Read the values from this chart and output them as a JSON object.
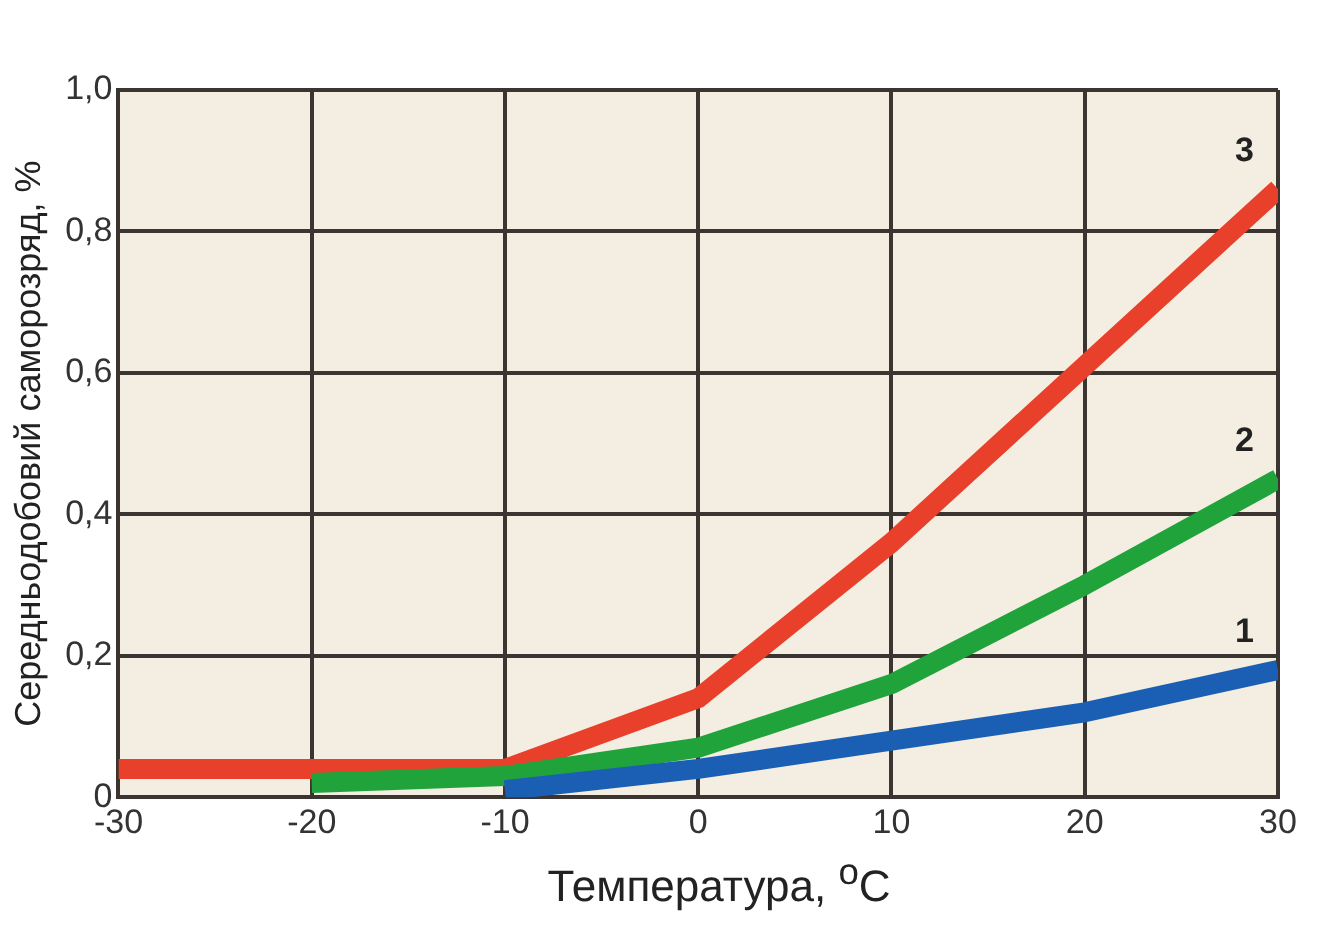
{
  "chart_data": {
    "type": "line",
    "xlabel": "Температура, $^{o}$C",
    "ylabel": "Середньодобовий саморозряд, %",
    "xlim": [
      -30,
      30
    ],
    "xticks": [
      -30,
      -20,
      -10,
      0,
      10,
      20,
      30
    ],
    "ylim": [
      0,
      1
    ],
    "yticks": [
      {
        "value": 0,
        "label": "0"
      },
      {
        "value": 0.2,
        "label": "0,2"
      },
      {
        "value": 0.4,
        "label": "0,4"
      },
      {
        "value": 0.6,
        "label": "0,6"
      },
      {
        "value": 0.8,
        "label": "0,8"
      },
      {
        "value": 1,
        "label": "1,0"
      }
    ],
    "grid": true,
    "legend": false,
    "marker": "none",
    "series": [
      {
        "name": "1",
        "color": "#1a5fb4",
        "x": [
          -10,
          0,
          10,
          20,
          30
        ],
        "values": [
          0.01,
          0.04,
          0.08,
          0.12,
          0.18
        ]
      },
      {
        "name": "2",
        "color": "#1fa33a",
        "x": [
          -20,
          -10,
          0,
          10,
          20,
          30
        ],
        "values": [
          0.02,
          0.03,
          0.07,
          0.16,
          0.3,
          0.45
        ]
      },
      {
        "name": "3",
        "color": "#e8402a",
        "x": [
          -30,
          -20,
          -10,
          0,
          10,
          20,
          30
        ],
        "values": [
          0.04,
          0.04,
          0.04,
          0.14,
          0.36,
          0.61,
          0.86
        ]
      }
    ]
  }
}
